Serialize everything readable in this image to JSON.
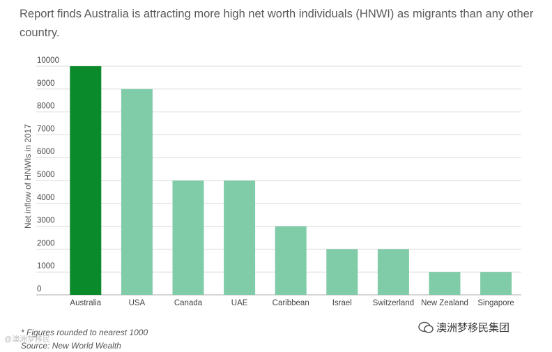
{
  "title": "Report finds Australia is attracting more high net worth individuals (HNWI) as migrants than any other country.",
  "chart_data": {
    "type": "bar",
    "categories": [
      "Australia",
      "USA",
      "Canada",
      "UAE",
      "Caribbean",
      "Israel",
      "Switzerland",
      "New Zealand",
      "Singapore"
    ],
    "values": [
      10000,
      9000,
      5000,
      5000,
      3000,
      2000,
      2000,
      1000,
      1000
    ],
    "highlight_index": 0,
    "ylabel": "Net inflow of HNWIs in 2017",
    "xlabel": "",
    "ylim": [
      0,
      10000
    ],
    "yticks": [
      0,
      1000,
      2000,
      3000,
      4000,
      5000,
      6000,
      7000,
      8000,
      9000,
      10000
    ],
    "grid": true,
    "colors": {
      "highlight": "#0b8a2c",
      "bar": "#80cba8",
      "grid": "#d9d9d9",
      "axis": "#bdbdbd",
      "text": "#444444"
    }
  },
  "notes": {
    "line1": "* Figures rounded to nearest 1000",
    "line2": "Source: New World Wealth"
  },
  "watermark": {
    "brand": "澳洲梦移民集团",
    "left_mark": "@澳洲梦移民"
  }
}
